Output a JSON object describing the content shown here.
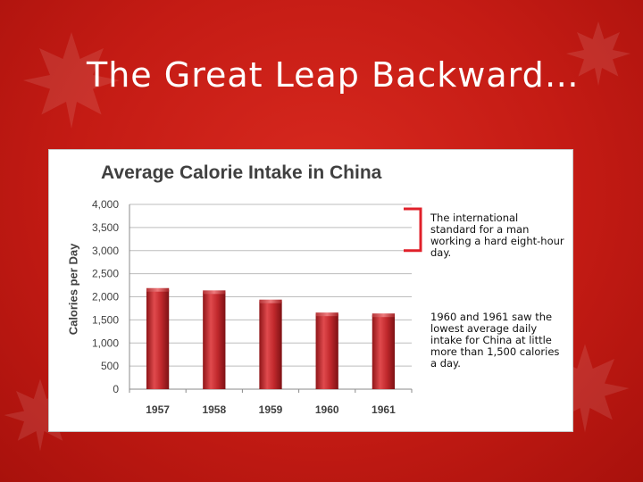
{
  "slide": {
    "title": "The Great Leap Backward…"
  },
  "annotations": {
    "standard_note": "The international standard for a man working a hard eight-hour day.",
    "lowest_note": "1960 and 1961 saw the lowest average daily intake for China at little more than 1,500 calories a day."
  },
  "colors": {
    "background": "#c41b14",
    "bar": "#c0282c",
    "bracket": "#e0202a"
  },
  "chart_data": {
    "type": "bar",
    "title": "Average Calorie Intake in China",
    "xlabel": "",
    "ylabel": "Calories per Day",
    "categories": [
      "1957",
      "1958",
      "1959",
      "1960",
      "1961"
    ],
    "values": [
      2150,
      2100,
      1900,
      1620,
      1600
    ],
    "ylim": [
      0,
      4000
    ],
    "yticks": [
      0,
      500,
      1000,
      1500,
      2000,
      2500,
      3000,
      3500,
      4000
    ],
    "ytick_labels": [
      "0",
      "500",
      "1,000",
      "1,500",
      "2,000",
      "2,500",
      "3,000",
      "3,500",
      "4,000"
    ],
    "grid": true,
    "highlight_range": [
      3000,
      4000
    ]
  }
}
